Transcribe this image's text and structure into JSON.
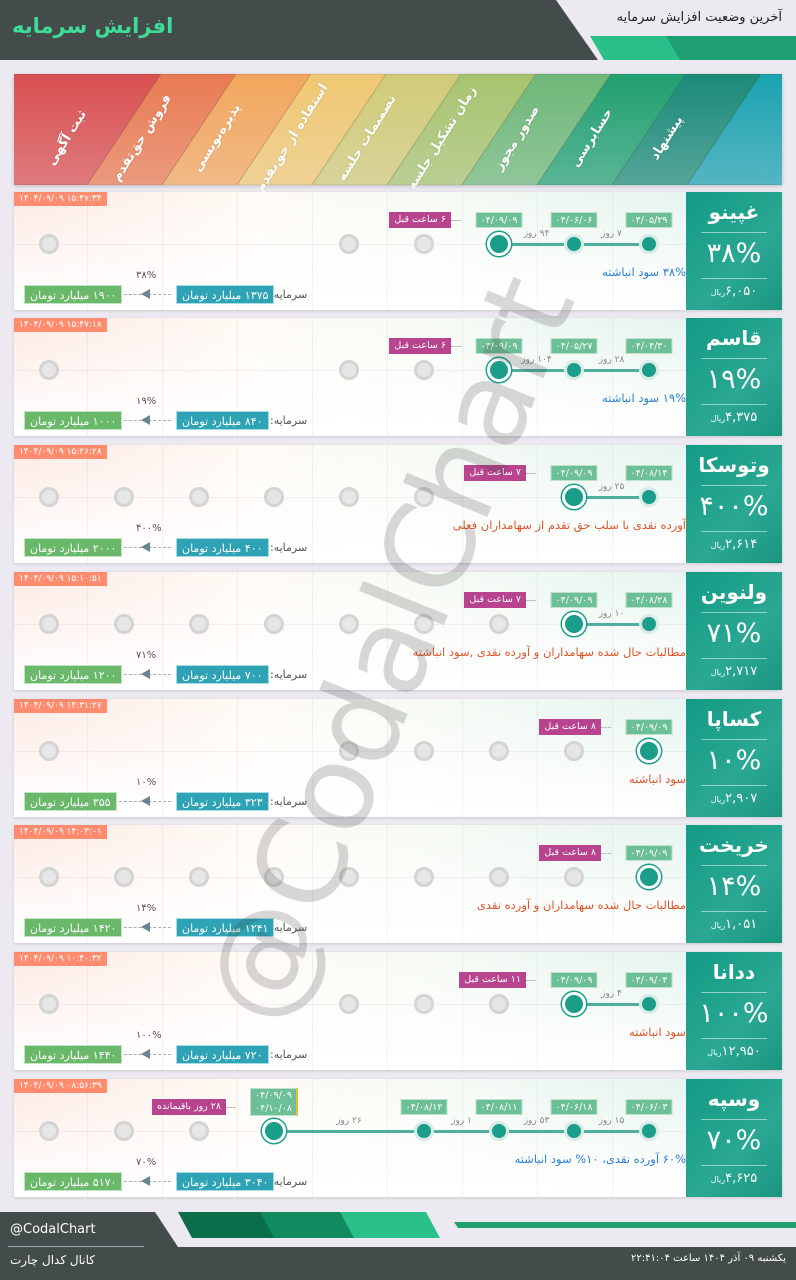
{
  "header": {
    "title": "افزایش سرمایه",
    "subtitle": "آخرین وضعیت افزایش سرمایه"
  },
  "stages": [
    "پیشنهاد",
    "حسابرسی",
    "صدور مجوز",
    "زمان تشکیل جلسه",
    "تصمیمات جلسه",
    "استفاده از حق‌تقدم",
    "پذیره‌نویسی",
    "فروش حق‌تقدم",
    "ثبت آگهی"
  ],
  "stage_colors": [
    "#1a8a78",
    "#20a070",
    "#6db878",
    "#a6c46e",
    "#d0cb78",
    "#f0c872",
    "#f2a65c",
    "#e97b52",
    "#d94f50"
  ],
  "capital_label": "سرمایه:",
  "currency": "ریال",
  "cards": [
    {
      "symbol": "غپینو",
      "percent": "۳۸%",
      "price": "۶,۰۵۰",
      "timestamp": "۱۴۰۴/۰۹/۰۹ ۱۵:۴۷:۳۴",
      "description": "۳۸% سود انباشته",
      "desc_color": "#2f7fd0",
      "cap_from": "۱۳۷۵ میلیارد تومان",
      "cap_to": "۱۹۰۰ میلیارد تومان",
      "cap_pct": "۳۸%",
      "states": [
        "done",
        "done",
        "current",
        "pending",
        "pending",
        "hidden",
        "hidden",
        "hidden",
        "pending"
      ],
      "dates": [
        {
          "step": 0,
          "text": "۰۴/۰۵/۲۹"
        },
        {
          "step": 1,
          "text": "۰۴/۰۶/۰۶"
        },
        {
          "step": 2,
          "text": "۰۴/۰۹/۰۹"
        }
      ],
      "ago": "۶ ساعت قبل",
      "durations": [
        {
          "from": 0,
          "to": 1,
          "text": "۷ روز"
        },
        {
          "from": 1,
          "to": 2,
          "text": "۹۴ روز"
        }
      ]
    },
    {
      "symbol": "قاسم",
      "percent": "۱۹%",
      "price": "۴,۳۷۵",
      "timestamp": "۱۴۰۴/۰۹/۰۹ ۱۵:۴۷:۱۸",
      "description": "۱۹% سود انباشته",
      "desc_color": "#2f7fd0",
      "cap_from": "۸۴۰ میلیارد تومان",
      "cap_to": "۱۰۰۰ میلیارد تومان",
      "cap_pct": "۱۹%",
      "states": [
        "done",
        "done",
        "current",
        "pending",
        "pending",
        "hidden",
        "hidden",
        "hidden",
        "pending"
      ],
      "dates": [
        {
          "step": 0,
          "text": "۰۴/۰۴/۳۰"
        },
        {
          "step": 1,
          "text": "۰۴/۰۵/۲۷"
        },
        {
          "step": 2,
          "text": "۰۴/۰۹/۰۹"
        }
      ],
      "ago": "۶ ساعت قبل",
      "durations": [
        {
          "from": 0,
          "to": 1,
          "text": "۲۸ روز"
        },
        {
          "from": 1,
          "to": 2,
          "text": "۱۰۴ روز"
        }
      ]
    },
    {
      "symbol": "وتوسکا",
      "percent": "۴۰۰%",
      "price": "۲,۶۱۴",
      "timestamp": "۱۴۰۴/۰۹/۰۹ ۱۵:۲۶:۲۸",
      "description": "آورده نقدی با سلب حق تقدم از سهامداران فعلی",
      "desc_color": "#e0542a",
      "cap_from": "۴۰۰ میلیارد تومان",
      "cap_to": "۲۰۰۰ میلیارد تومان",
      "cap_pct": "۴۰۰%",
      "states": [
        "done",
        "current",
        "hidden",
        "pending",
        "pending",
        "pending",
        "pending",
        "pending",
        "pending"
      ],
      "dates": [
        {
          "step": 0,
          "text": "۰۴/۰۸/۱۴"
        },
        {
          "step": 1,
          "text": "۰۴/۰۹/۰۹"
        }
      ],
      "ago": "۷ ساعت قبل",
      "durations": [
        {
          "from": 0,
          "to": 1,
          "text": "۲۵ روز"
        }
      ]
    },
    {
      "symbol": "ولنوین",
      "percent": "۷۱%",
      "price": "۲,۷۱۷",
      "timestamp": "۱۴۰۴/۰۹/۰۹ ۱۵:۱۰:۵۱",
      "description": "مطالبات حال شده سهامداران و آورده نقدی ,سود انباشته",
      "desc_color": "#e0542a",
      "cap_from": "۷۰۰ میلیارد تومان",
      "cap_to": "۱۲۰۰ میلیارد تومان",
      "cap_pct": "۷۱%",
      "states": [
        "done",
        "current",
        "pending",
        "pending",
        "pending",
        "pending",
        "pending",
        "pending",
        "pending"
      ],
      "dates": [
        {
          "step": 0,
          "text": "۰۴/۰۸/۲۸"
        },
        {
          "step": 1,
          "text": "۰۴/۰۹/۰۹"
        }
      ],
      "ago": "۷ ساعت قبل",
      "durations": [
        {
          "from": 0,
          "to": 1,
          "text": "۱۰ روز"
        }
      ]
    },
    {
      "symbol": "کساپا",
      "percent": "۱۰%",
      "price": "۲,۹۰۷",
      "timestamp": "۱۴۰۴/۰۹/۰۹ ۱۴:۳۱:۲۷",
      "description": "سود انباشته",
      "desc_color": "#e0542a",
      "cap_from": "۳۲۳ میلیارد تومان",
      "cap_to": "۳۵۵ میلیارد تومان",
      "cap_pct": "۱۰%",
      "states": [
        "current",
        "pending",
        "pending",
        "pending",
        "pending",
        "hidden",
        "hidden",
        "hidden",
        "pending"
      ],
      "dates": [
        {
          "step": 0,
          "text": "۰۴/۰۹/۰۹"
        }
      ],
      "ago": "۸ ساعت قبل",
      "durations": []
    },
    {
      "symbol": "خریخت",
      "percent": "۱۴%",
      "price": "۱,۰۵۱",
      "timestamp": "۱۴۰۴/۰۹/۰۹ ۱۴:۰۳:۰۱",
      "description": "مطالبات حال شده سهامداران و آورده نقدی",
      "desc_color": "#e0542a",
      "cap_from": "۱۲۴۱ میلیارد تومان",
      "cap_to": "۱۴۲۰ میلیارد تومان",
      "cap_pct": "۱۴%",
      "states": [
        "current",
        "pending",
        "pending",
        "pending",
        "pending",
        "pending",
        "pending",
        "pending",
        "pending"
      ],
      "dates": [
        {
          "step": 0,
          "text": "۰۴/۰۹/۰۹"
        }
      ],
      "ago": "۸ ساعت قبل",
      "durations": []
    },
    {
      "symbol": "ددانا",
      "percent": "۱۰۰%",
      "price": "۱۲,۹۵۰",
      "timestamp": "۱۴۰۴/۰۹/۰۹ ۱۰:۴۰:۳۲",
      "description": "سود انباشته",
      "desc_color": "#e0542a",
      "cap_from": "۷۲۰ میلیارد تومان",
      "cap_to": "۱۴۴۰ میلیارد تومان",
      "cap_pct": "۱۰۰%",
      "states": [
        "done",
        "current",
        "pending",
        "pending",
        "pending",
        "hidden",
        "hidden",
        "hidden",
        "pending"
      ],
      "dates": [
        {
          "step": 0,
          "text": "۰۴/۰۹/۰۴"
        },
        {
          "step": 1,
          "text": "۰۴/۰۹/۰۹"
        }
      ],
      "ago": "۱۱ ساعت قبل",
      "durations": [
        {
          "from": 0,
          "to": 1,
          "text": "۴ روز"
        }
      ]
    },
    {
      "symbol": "وسپه",
      "percent": "۷۰%",
      "price": "۴,۶۲۵",
      "timestamp": "۱۴۰۴/۰۹/۰۹ ۰۸:۵۶:۳۹",
      "description": "۶۰% آورده نقدی، ۱۰% سود انباشته",
      "desc_color": "#2f7fd0",
      "cap_from": "۳۰۴۰ میلیارد تومان",
      "cap_to": "۵۱۷۰ میلیارد تومان",
      "cap_pct": "۷۰%",
      "states": [
        "done",
        "done",
        "done",
        "done",
        "hidden",
        "current",
        "pending",
        "pending",
        "pending"
      ],
      "dates": [
        {
          "step": 0,
          "text": "۰۴/۰۶/۰۳"
        },
        {
          "step": 1,
          "text": "۰۴/۰۶/۱۸"
        },
        {
          "step": 2,
          "text": "۰۴/۰۸/۱۱"
        },
        {
          "step": 3,
          "text": "۰۴/۰۸/۱۲"
        },
        {
          "step": 5,
          "text": "۰۴/۰۹/۰۹",
          "text2": "۰۴/۱۰/۰۸"
        }
      ],
      "ago": "۲۸ روز باقیمانده",
      "durations": [
        {
          "from": 0,
          "to": 1,
          "text": "۱۵ روز"
        },
        {
          "from": 1,
          "to": 2,
          "text": "۵۳ روز"
        },
        {
          "from": 2,
          "to": 3,
          "text": "۱ روز"
        },
        {
          "from": 3,
          "to": 5,
          "text": "۲۶ روز"
        }
      ]
    }
  ],
  "watermark": "@CodalChart",
  "footer": {
    "handle": "@CodalChart",
    "channel": "کانال کدال چارت",
    "datetime": "یکشنبه ۰۹ آذر ۱۴۰۴ ساعت ۲۲:۴۱:۰۴"
  }
}
